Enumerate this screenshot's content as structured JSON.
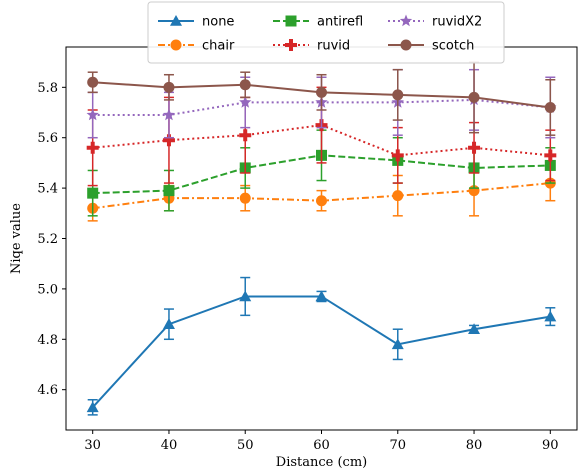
{
  "chart_data": {
    "type": "line",
    "xlabel": "Distance (cm)",
    "ylabel": "Niqe value",
    "x": [
      30,
      40,
      50,
      60,
      70,
      80,
      90
    ],
    "xlim": [
      26.5,
      93.5
    ],
    "ylim": [
      4.44,
      5.96
    ],
    "xticks": [
      30,
      40,
      50,
      60,
      70,
      80,
      90
    ],
    "yticks": [
      4.6,
      4.8,
      5.0,
      5.2,
      5.4,
      5.6,
      5.8
    ],
    "grid": false,
    "legend_position": "top-center",
    "series": [
      {
        "name": "none",
        "color": "#1f77b4",
        "dash": "solid",
        "marker": "triangle",
        "values": [
          4.53,
          4.86,
          4.97,
          4.97,
          4.78,
          4.84,
          4.89
        ],
        "errors": [
          0.03,
          0.06,
          0.075,
          0.02,
          0.06,
          0.015,
          0.035
        ]
      },
      {
        "name": "chair",
        "color": "#ff7f0e",
        "dash": "dashdot",
        "marker": "circle",
        "values": [
          5.32,
          5.36,
          5.36,
          5.35,
          5.37,
          5.39,
          5.42
        ],
        "errors": [
          0.05,
          0.05,
          0.05,
          0.04,
          0.08,
          0.1,
          0.07
        ]
      },
      {
        "name": "antirefl",
        "color": "#2ca02c",
        "dash": "dashed",
        "marker": "square",
        "values": [
          5.38,
          5.39,
          5.48,
          5.53,
          5.51,
          5.48,
          5.49
        ],
        "errors": [
          0.09,
          0.08,
          0.08,
          0.1,
          0.09,
          0.08,
          0.07
        ]
      },
      {
        "name": "ruvid",
        "color": "#d62728",
        "dash": "dotted",
        "marker": "plus",
        "values": [
          5.56,
          5.59,
          5.61,
          5.65,
          5.53,
          5.56,
          5.53
        ],
        "errors": [
          0.15,
          0.17,
          0.15,
          0.15,
          0.11,
          0.1,
          0.1
        ]
      },
      {
        "name": "ruvidX2",
        "color": "#9467bd",
        "dash": "dotted",
        "marker": "star",
        "values": [
          5.69,
          5.69,
          5.74,
          5.74,
          5.74,
          5.75,
          5.72
        ],
        "errors": [
          0.09,
          0.09,
          0.1,
          0.1,
          0.13,
          0.12,
          0.12
        ]
      },
      {
        "name": "scotch",
        "color": "#8c564b",
        "dash": "solid",
        "marker": "circle",
        "values": [
          5.82,
          5.8,
          5.81,
          5.78,
          5.77,
          5.76,
          5.72
        ],
        "errors": [
          0.04,
          0.05,
          0.05,
          0.07,
          0.1,
          0.14,
          0.11
        ]
      }
    ]
  }
}
